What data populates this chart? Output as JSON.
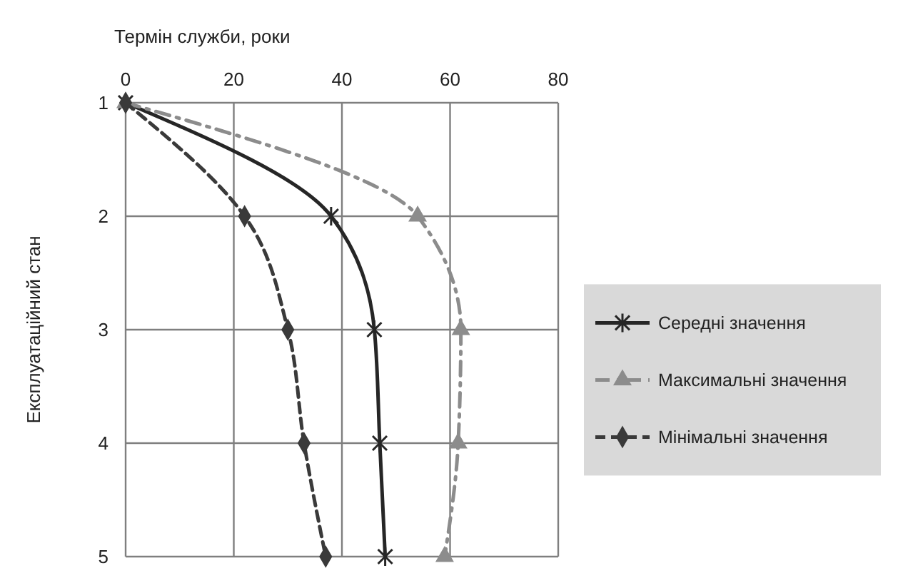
{
  "chart_data": {
    "type": "line",
    "xlabel": "Термін служби, роки",
    "ylabel": "Експлуатаційний стан",
    "xlim": [
      0,
      80
    ],
    "xticks": [
      0,
      20,
      40,
      60,
      80
    ],
    "ylim": [
      5,
      1
    ],
    "yticks": [
      1,
      2,
      3,
      4,
      5
    ],
    "grid": true,
    "legend": "right",
    "series": [
      {
        "name": "Середні значення",
        "color": "#262626",
        "x": [
          0,
          38,
          46,
          47,
          48
        ],
        "values": [
          1,
          2,
          3,
          4,
          5
        ],
        "marker": "cross",
        "line_style": "solid"
      },
      {
        "name": "Максимальні значення",
        "color": "#8c8c8c",
        "x": [
          0,
          54,
          62,
          61.5,
          59
        ],
        "values": [
          1,
          2,
          3,
          4,
          5
        ],
        "marker": "triangle",
        "line_style": "dashdot"
      },
      {
        "name": "Мінімальні значення",
        "color": "#3a3a3a",
        "x": [
          0,
          22,
          30,
          33,
          37
        ],
        "values": [
          1,
          2,
          3,
          4,
          5
        ],
        "marker": "diamond",
        "line_style": "dashed"
      }
    ]
  }
}
